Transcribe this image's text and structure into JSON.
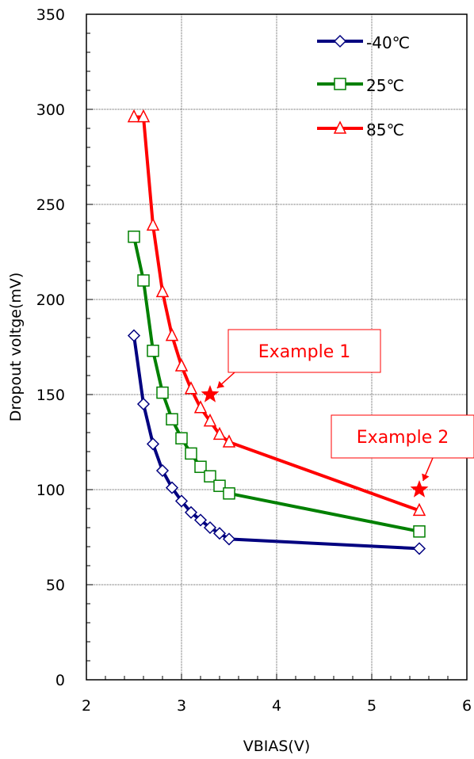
{
  "chart_data": {
    "type": "line",
    "title": "",
    "xlabel": "VBIAS(V)",
    "ylabel": "Dropout voltge(mV)",
    "xlim": [
      2,
      6
    ],
    "ylim": [
      0,
      350
    ],
    "xticks": [
      2,
      3,
      4,
      5,
      6
    ],
    "yticks": [
      0,
      50,
      100,
      150,
      200,
      250,
      300,
      350
    ],
    "grid": true,
    "legend_position": "top-right",
    "series": [
      {
        "name": "-40℃",
        "color": "#000080",
        "marker": "diamond",
        "x": [
          2.5,
          2.6,
          2.7,
          2.8,
          2.9,
          3.0,
          3.1,
          3.2,
          3.3,
          3.4,
          3.5,
          5.5
        ],
        "y": [
          181,
          145,
          124,
          110,
          101,
          94,
          88,
          84,
          80,
          77,
          74,
          69
        ]
      },
      {
        "name": "25℃",
        "color": "#008000",
        "marker": "square",
        "x": [
          2.5,
          2.6,
          2.7,
          2.8,
          2.9,
          3.0,
          3.1,
          3.2,
          3.3,
          3.4,
          3.5,
          5.5
        ],
        "y": [
          233,
          210,
          173,
          151,
          137,
          127,
          119,
          112,
          107,
          102,
          98,
          78
        ]
      },
      {
        "name": "85℃",
        "color": "#ff0000",
        "marker": "triangle",
        "x": [
          2.5,
          2.6,
          2.7,
          2.8,
          2.9,
          3.0,
          3.1,
          3.2,
          3.3,
          3.4,
          3.5,
          5.5
        ],
        "y": [
          296,
          296,
          239,
          204,
          181,
          165,
          153,
          143,
          136,
          129,
          125,
          89
        ]
      }
    ],
    "annotations": [
      {
        "label": "Example 1",
        "x": 3.3,
        "y": 150,
        "color": "#ff0000",
        "marker": "star"
      },
      {
        "label": "Example 2",
        "x": 5.5,
        "y": 100,
        "color": "#ff0000",
        "marker": "star"
      }
    ]
  }
}
